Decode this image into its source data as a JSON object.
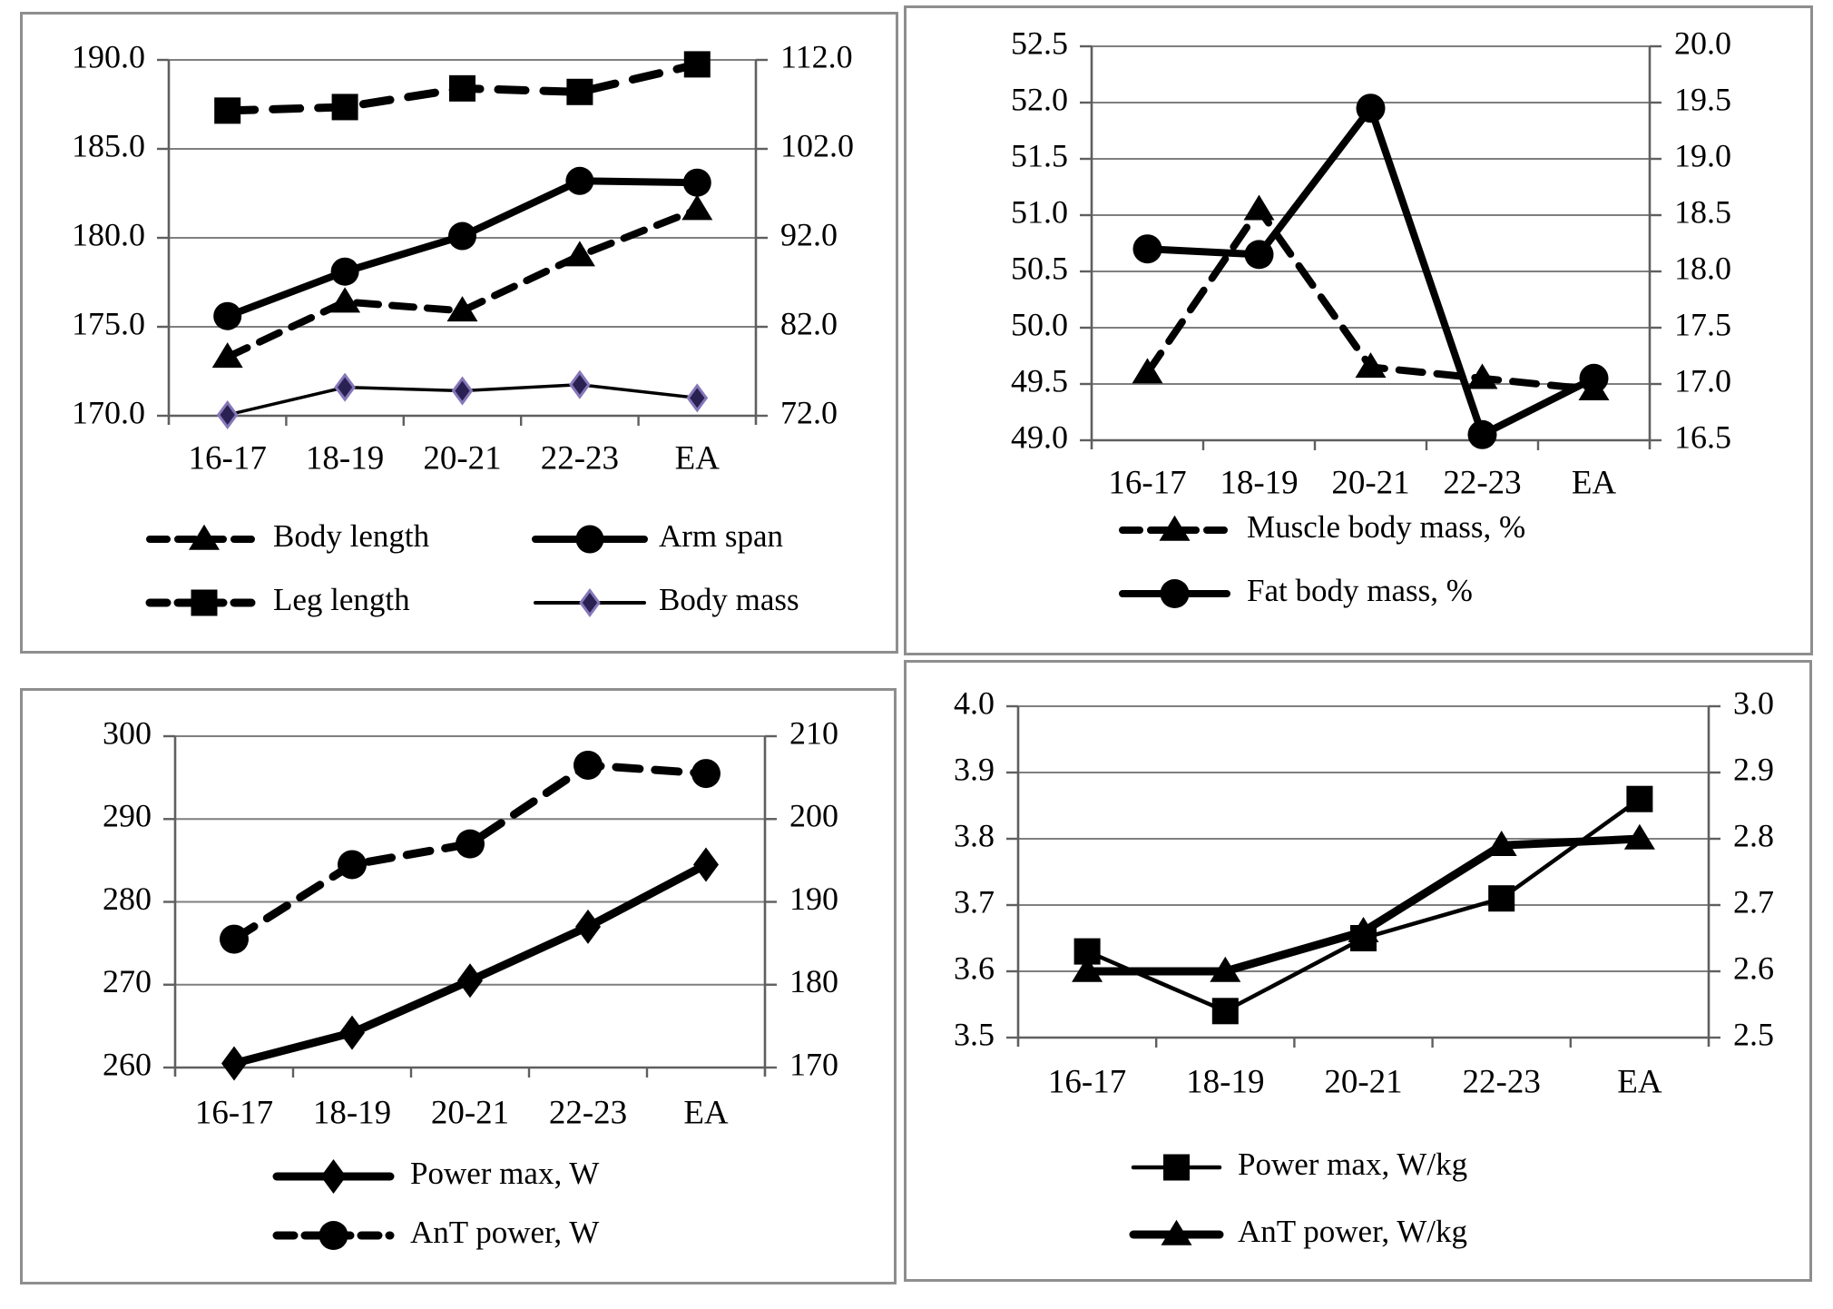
{
  "figure": {
    "description": "Four line charts of age-group dynamics (16-17, 18-19, 20-21, 22-23, EA)",
    "colors": {
      "line": "#000000",
      "grid": "#7f7f7f",
      "axis": "#5f5f5f",
      "panel_border": "#8e8e8e",
      "body_mass_marker_fill": "#2a2153",
      "body_mass_marker_edge": "#8677b9"
    }
  },
  "chart_data": [
    {
      "id": "anthropometry",
      "type": "line",
      "grid": true,
      "legend_position": "bottom",
      "categories": [
        "16-17",
        "18-19",
        "20-21",
        "22-23",
        "EA"
      ],
      "left_axis": {
        "min": 170.0,
        "max": 190.0,
        "step": 5.0,
        "tick_labels": [
          "190.0",
          "185.0",
          "180.0",
          "175.0",
          "170.0"
        ]
      },
      "right_axis": {
        "min": 72.0,
        "max": 112.0,
        "step": 10.0,
        "tick_labels": [
          "112.0",
          "102.0",
          "92.0",
          "82.0",
          "72.0"
        ]
      },
      "series": [
        {
          "name": "Body length",
          "axis": "left",
          "marker": "triangle",
          "line": "dashed",
          "color": "#000000",
          "values": [
            173.3,
            176.4,
            175.9,
            179.0,
            181.6
          ]
        },
        {
          "name": "Arm span",
          "axis": "left",
          "marker": "circle",
          "line": "solid",
          "color": "#000000",
          "values": [
            175.6,
            178.1,
            180.1,
            183.2,
            183.1
          ]
        },
        {
          "name": "Leg length",
          "axis": "right",
          "marker": "square",
          "line": "dashed",
          "color": "#000000",
          "values": [
            106.3,
            106.7,
            108.8,
            108.4,
            111.5
          ]
        },
        {
          "name": "Body mass",
          "axis": "right",
          "marker": "diamond",
          "line": "solid",
          "color": "#000000",
          "marker_fill": "#2a2153",
          "marker_edge": "#8677b9",
          "values": [
            72.1,
            75.2,
            74.8,
            75.5,
            74.0
          ]
        }
      ]
    },
    {
      "id": "body-composition",
      "type": "line",
      "grid": true,
      "legend_position": "bottom",
      "categories": [
        "16-17",
        "18-19",
        "20-21",
        "22-23",
        "EA"
      ],
      "left_axis": {
        "min": 49.0,
        "max": 52.5,
        "step": 0.5,
        "tick_labels": [
          "52.5",
          "52.0",
          "51.5",
          "51.0",
          "50.5",
          "50.0",
          "49.5",
          "49.0"
        ]
      },
      "right_axis": {
        "min": 16.5,
        "max": 20.0,
        "step": 0.5,
        "tick_labels": [
          "20.0",
          "19.5",
          "19.0",
          "18.5",
          "18.0",
          "17.5",
          "17.0",
          "16.5"
        ]
      },
      "series": [
        {
          "name": "Muscle body mass, %",
          "axis": "left",
          "marker": "triangle",
          "line": "dashed",
          "color": "#000000",
          "values": [
            49.6,
            51.05,
            49.65,
            49.55,
            49.45
          ]
        },
        {
          "name": "Fat body mass, %",
          "axis": "right",
          "marker": "circle",
          "line": "solid",
          "color": "#000000",
          "values": [
            18.2,
            18.15,
            19.45,
            16.55,
            17.05
          ]
        }
      ]
    },
    {
      "id": "absolute-power",
      "type": "line",
      "grid": true,
      "legend_position": "bottom",
      "categories": [
        "16-17",
        "18-19",
        "20-21",
        "22-23",
        "EA"
      ],
      "left_axis": {
        "min": 260,
        "max": 300,
        "step": 10,
        "tick_labels": [
          "300",
          "290",
          "280",
          "270",
          "260"
        ]
      },
      "right_axis": {
        "min": 170,
        "max": 210,
        "step": 10,
        "tick_labels": [
          "210",
          "200",
          "190",
          "180",
          "170"
        ]
      },
      "series": [
        {
          "name": "Power max, W",
          "axis": "left",
          "marker": "diamond",
          "line": "solid",
          "color": "#000000",
          "values": [
            260.5,
            264.2,
            270.5,
            277.0,
            284.5
          ]
        },
        {
          "name": "AnT power, W",
          "axis": "right",
          "marker": "circle",
          "line": "dashed",
          "color": "#000000",
          "values": [
            185.5,
            194.5,
            197.0,
            206.5,
            205.5
          ]
        }
      ]
    },
    {
      "id": "relative-power",
      "type": "line",
      "grid": true,
      "legend_position": "bottom",
      "categories": [
        "16-17",
        "18-19",
        "20-21",
        "22-23",
        "EA"
      ],
      "left_axis": {
        "min": 3.5,
        "max": 4.0,
        "step": 0.1,
        "tick_labels": [
          "4.0",
          "3.9",
          "3.8",
          "3.7",
          "3.6",
          "3.5"
        ]
      },
      "right_axis": {
        "min": 2.5,
        "max": 3.0,
        "step": 0.1,
        "tick_labels": [
          "3.0",
          "2.9",
          "2.8",
          "2.7",
          "2.6",
          "2.5"
        ]
      },
      "series": [
        {
          "name": "Power max, W/kg",
          "axis": "left",
          "marker": "square",
          "line": "solid",
          "color": "#000000",
          "values": [
            3.63,
            3.54,
            3.65,
            3.71,
            3.86
          ]
        },
        {
          "name": "AnT power, W/kg",
          "axis": "right",
          "marker": "triangle",
          "line": "solid",
          "color": "#000000",
          "values": [
            2.6,
            2.6,
            2.66,
            2.79,
            2.8
          ]
        }
      ]
    }
  ]
}
